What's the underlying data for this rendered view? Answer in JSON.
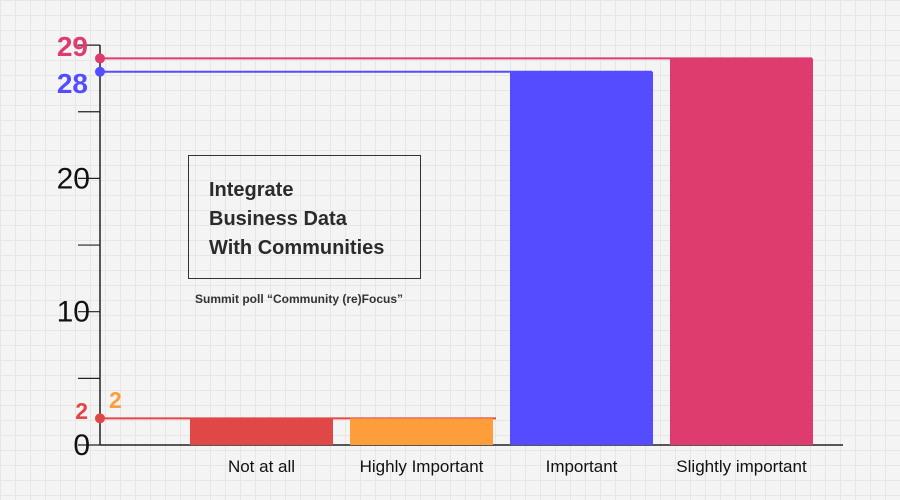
{
  "chart_data": {
    "type": "bar",
    "categories": [
      "Not at all",
      "Highly Important",
      "Important",
      "Slightly important"
    ],
    "values": [
      2,
      2,
      28,
      29
    ],
    "colors": [
      "#e04848",
      "#fd9d3b",
      "#554cff",
      "#de3b6f"
    ],
    "ylim": [
      0,
      30
    ],
    "y_tick_labels": [
      "0",
      "10",
      "20"
    ],
    "y_tick_values": [
      0,
      10,
      20
    ],
    "title_lines": [
      "Integrate",
      "Business Data",
      "With Communities"
    ],
    "subtitle": "Summit poll “Community (re)Focus”",
    "callouts": [
      {
        "value": 29,
        "label": "29",
        "color": "#de3b6f"
      },
      {
        "value": 28,
        "label": "28",
        "color": "#554cff"
      },
      {
        "value": 2,
        "label": "2",
        "color": "#e04848"
      }
    ],
    "bar_value_label": {
      "label": "2",
      "color": "#fd9d3b"
    }
  }
}
